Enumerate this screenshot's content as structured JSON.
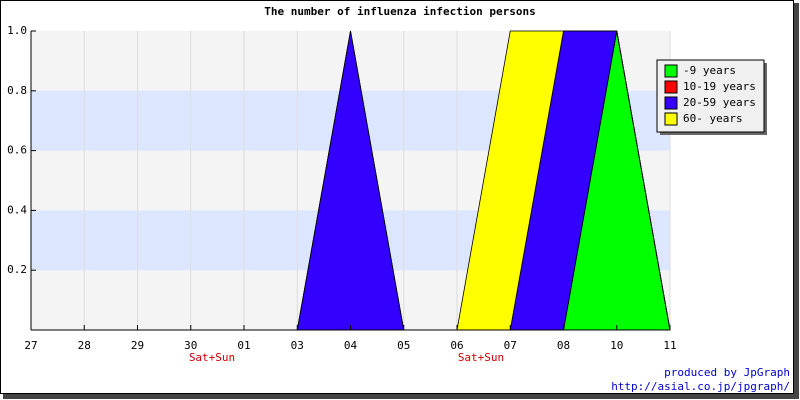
{
  "chart_data": {
    "type": "stacked-area",
    "title": "The number of influenza infection persons",
    "categories": [
      "27",
      "28",
      "29",
      "30",
      "01",
      "03",
      "04",
      "05",
      "06",
      "07",
      "08",
      "10",
      "11"
    ],
    "notes": [
      "Sat+Sun",
      "Sat+Sun"
    ],
    "series": [
      {
        "name": "-9 years",
        "color": "#00ff00",
        "values": [
          0,
          0,
          0,
          0,
          0,
          0,
          0,
          0,
          0,
          0,
          0,
          1,
          0
        ]
      },
      {
        "name": "10-19 years",
        "color": "#ff0000",
        "values": [
          0,
          0,
          0,
          0,
          0,
          0,
          0,
          0,
          0,
          0,
          0,
          0,
          0
        ]
      },
      {
        "name": "20-59 years",
        "color": "#3300ff",
        "values": [
          0,
          0,
          0,
          0,
          0,
          0,
          1,
          0,
          0,
          0,
          1,
          0,
          0
        ]
      },
      {
        "name": "60- years",
        "color": "#ffff00",
        "values": [
          0,
          0,
          0,
          0,
          0,
          0,
          0,
          0,
          0,
          1,
          0,
          0,
          0
        ]
      }
    ],
    "ylim": [
      0,
      1
    ],
    "yticks": [
      0.2,
      0.4,
      0.6,
      0.8,
      {
        "value": 1,
        "label": "1.0"
      }
    ],
    "grid": true,
    "legend_position": "top-right",
    "credits": [
      "produced by JpGraph",
      "http://asial.co.jp/jpgraph/"
    ]
  }
}
